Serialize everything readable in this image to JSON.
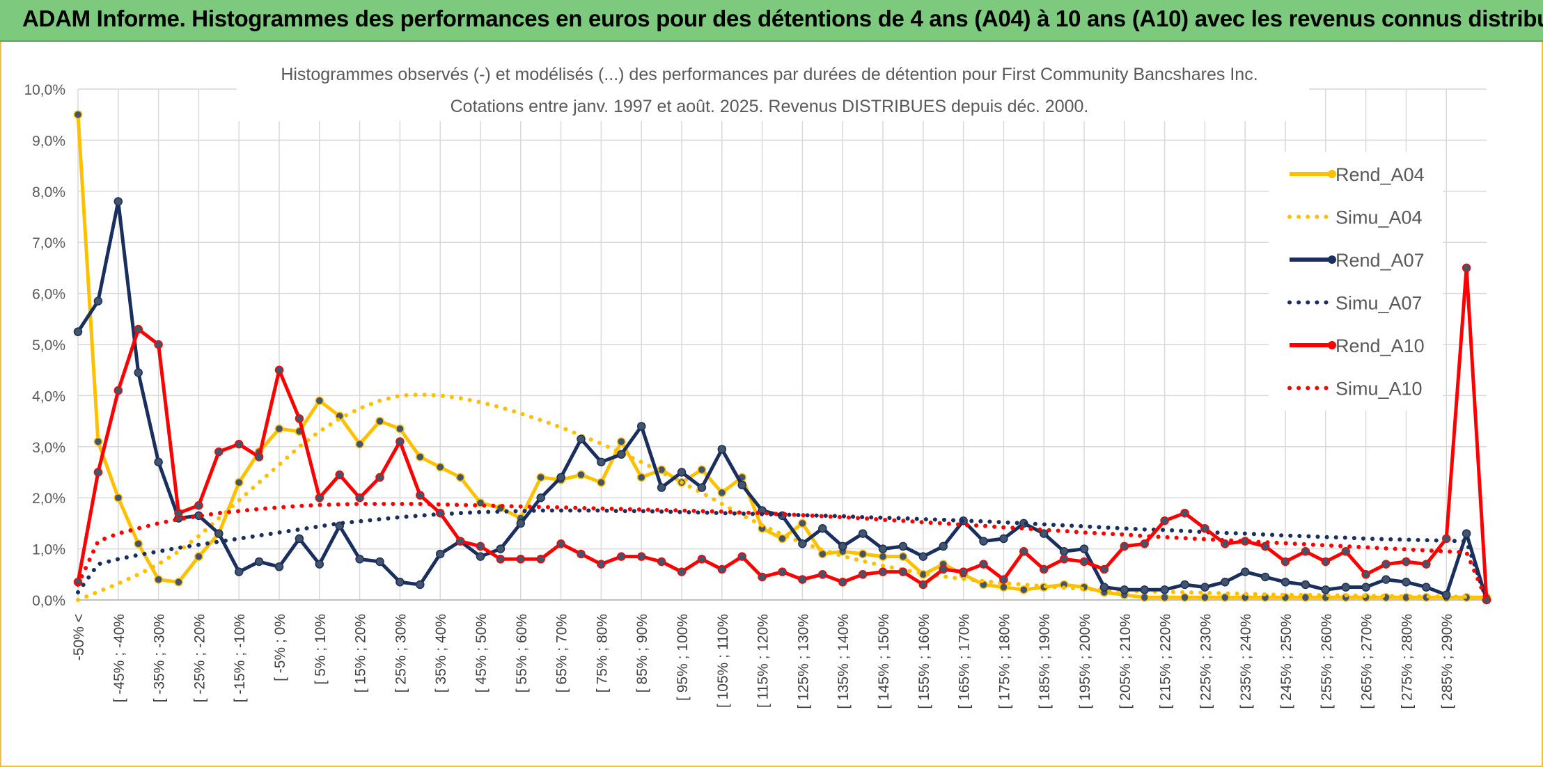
{
  "banner": {
    "title": "ADAM Informe. Histogrammes des performances en euros pour des détentions de 4 ans (A04) à 10 ans (A10) avec les revenus connus distribués"
  },
  "chart_data": {
    "type": "line",
    "title": "Histogrammes observés (-) et modélisés (...) des performances par durées de détention pour First Community Bancshares Inc.",
    "subtitle": "Cotations entre janv. 1997 et août. 2025. Revenus DISTRIBUES depuis déc. 2000.",
    "xlabel": "",
    "ylabel": "",
    "ylim": [
      0,
      10
    ],
    "y_ticks": [
      "0,0%",
      "1,0%",
      "2,0%",
      "3,0%",
      "4,0%",
      "5,0%",
      "6,0%",
      "7,0%",
      "8,0%",
      "9,0%",
      "10,0%"
    ],
    "x_tick_labels": [
      "-50% <",
      "[ -45% ; -40%",
      "[ -35% ; -30%",
      "[ -25% ; -20%",
      "[ -15% ; -10%",
      "[ -5% ; 0%",
      "[ 5% ; 10%",
      "[ 15% ; 20%",
      "[ 25% ; 30%",
      "[ 35% ; 40%",
      "[ 45% ; 50%",
      "[ 55% ; 60%",
      "[ 65% ; 70%",
      "[ 75% ; 80%",
      "[ 85% ; 90%",
      "[ 95% ; 100%",
      "[ 105% ; 110%",
      "[ 115% ; 120%",
      "[ 125% ; 130%",
      "[ 135% ; 140%",
      "[ 145% ; 150%",
      "[ 155% ; 160%",
      "[ 165% ; 170%",
      "[ 175% ; 180%",
      "[ 185% ; 190%",
      "[ 195% ; 200%",
      "[ 205% ; 210%",
      "[ 215% ; 220%",
      "[ 225% ; 230%",
      "[ 235% ; 240%",
      "[ 245% ; 250%",
      "[ 255% ; 260%",
      "[ 265% ; 270%",
      "[ 275% ; 280%",
      "[ 285% ; 290%"
    ],
    "grid": true,
    "legend_position": "right",
    "series": [
      {
        "name": "Rend_A04",
        "style": "solid",
        "color": "#ffc000",
        "values": [
          9.5,
          3.1,
          2.0,
          1.1,
          0.4,
          0.35,
          0.85,
          1.3,
          2.3,
          2.9,
          3.35,
          3.3,
          3.9,
          3.6,
          3.05,
          3.5,
          3.35,
          2.8,
          2.6,
          2.4,
          1.9,
          1.8,
          1.6,
          2.4,
          2.35,
          2.45,
          2.3,
          3.1,
          2.4,
          2.55,
          2.3,
          2.55,
          2.1,
          2.4,
          1.4,
          1.2,
          1.5,
          0.9,
          0.95,
          0.9,
          0.85,
          0.85,
          0.5,
          0.7,
          0.5,
          0.3,
          0.25,
          0.2,
          0.25,
          0.3,
          0.25,
          0.15,
          0.1,
          0.05,
          0.05,
          0.05,
          0.05,
          0.05,
          0.05,
          0.05,
          0.05,
          0.05,
          0.05,
          0.05,
          0.05,
          0.05,
          0.05,
          0.05,
          0.05,
          0.05,
          0.05
        ]
      },
      {
        "name": "Simu_A04",
        "style": "dotted",
        "color": "#ffc000",
        "values": [
          0.0,
          0.16,
          0.32,
          0.5,
          0.7,
          0.95,
          1.25,
          1.6,
          1.95,
          2.3,
          2.65,
          3.0,
          3.3,
          3.55,
          3.75,
          3.9,
          4.0,
          4.02,
          4.0,
          3.95,
          3.87,
          3.77,
          3.65,
          3.52,
          3.38,
          3.22,
          3.06,
          2.88,
          2.7,
          2.5,
          2.3,
          2.1,
          1.88,
          1.66,
          1.46,
          1.28,
          1.12,
          0.98,
          0.86,
          0.76,
          0.67,
          0.59,
          0.52,
          0.46,
          0.41,
          0.37,
          0.33,
          0.3,
          0.27,
          0.24,
          0.22,
          0.2,
          0.18,
          0.17,
          0.16,
          0.15,
          0.14,
          0.13,
          0.12,
          0.11,
          0.1,
          0.1,
          0.09,
          0.09,
          0.08,
          0.08,
          0.07,
          0.07,
          0.07,
          0.06,
          0.0
        ]
      },
      {
        "name": "Rend_A07",
        "style": "solid",
        "color": "#1a2f5e",
        "values": [
          5.25,
          5.85,
          7.8,
          4.45,
          2.7,
          1.6,
          1.65,
          1.3,
          0.55,
          0.75,
          0.65,
          1.2,
          0.7,
          1.45,
          0.8,
          0.75,
          0.35,
          0.3,
          0.9,
          1.15,
          0.85,
          1.0,
          1.5,
          2.0,
          2.4,
          3.15,
          2.7,
          2.85,
          3.4,
          2.2,
          2.5,
          2.2,
          2.95,
          2.25,
          1.75,
          1.65,
          1.1,
          1.4,
          1.05,
          1.3,
          1.0,
          1.05,
          0.85,
          1.05,
          1.55,
          1.15,
          1.2,
          1.5,
          1.3,
          0.95,
          1.0,
          0.25,
          0.2,
          0.2,
          0.2,
          0.3,
          0.25,
          0.35,
          0.55,
          0.45,
          0.35,
          0.3,
          0.2,
          0.25,
          0.25,
          0.4,
          0.35,
          0.25,
          0.1,
          1.3,
          0.0
        ]
      },
      {
        "name": "Simu_A07",
        "style": "dotted",
        "color": "#1a2f5e",
        "values": [
          0.15,
          0.7,
          0.8,
          0.88,
          0.95,
          1.02,
          1.08,
          1.14,
          1.2,
          1.26,
          1.32,
          1.38,
          1.44,
          1.5,
          1.54,
          1.58,
          1.62,
          1.65,
          1.68,
          1.7,
          1.72,
          1.73,
          1.74,
          1.75,
          1.75,
          1.75,
          1.75,
          1.74,
          1.74,
          1.73,
          1.72,
          1.71,
          1.7,
          1.69,
          1.68,
          1.67,
          1.66,
          1.65,
          1.64,
          1.62,
          1.61,
          1.6,
          1.58,
          1.57,
          1.55,
          1.54,
          1.52,
          1.5,
          1.48,
          1.46,
          1.44,
          1.42,
          1.4,
          1.38,
          1.37,
          1.35,
          1.33,
          1.31,
          1.3,
          1.28,
          1.26,
          1.25,
          1.23,
          1.22,
          1.2,
          1.19,
          1.18,
          1.17,
          1.16,
          1.15,
          0.0
        ]
      },
      {
        "name": "Rend_A10",
        "style": "solid",
        "color": "#ff0000",
        "values": [
          0.35,
          2.5,
          4.1,
          5.3,
          5.0,
          1.7,
          1.85,
          2.9,
          3.05,
          2.8,
          4.5,
          3.55,
          2.0,
          2.45,
          2.0,
          2.4,
          3.1,
          2.05,
          1.7,
          1.15,
          1.05,
          0.8,
          0.8,
          0.8,
          1.1,
          0.9,
          0.7,
          0.85,
          0.85,
          0.75,
          0.55,
          0.8,
          0.6,
          0.85,
          0.45,
          0.55,
          0.4,
          0.5,
          0.35,
          0.5,
          0.55,
          0.55,
          0.3,
          0.6,
          0.55,
          0.7,
          0.4,
          0.95,
          0.6,
          0.8,
          0.75,
          0.6,
          1.05,
          1.1,
          1.55,
          1.7,
          1.4,
          1.1,
          1.15,
          1.05,
          0.75,
          0.95,
          0.75,
          0.95,
          0.5,
          0.7,
          0.75,
          0.7,
          1.2,
          6.5,
          0.0
        ]
      },
      {
        "name": "Simu_A10",
        "style": "dotted",
        "color": "#ff0000",
        "values": [
          0.3,
          1.15,
          1.3,
          1.4,
          1.5,
          1.58,
          1.64,
          1.7,
          1.74,
          1.78,
          1.81,
          1.84,
          1.86,
          1.87,
          1.88,
          1.88,
          1.88,
          1.88,
          1.87,
          1.86,
          1.85,
          1.84,
          1.83,
          1.82,
          1.81,
          1.8,
          1.79,
          1.78,
          1.77,
          1.76,
          1.75,
          1.74,
          1.73,
          1.71,
          1.7,
          1.68,
          1.66,
          1.64,
          1.62,
          1.6,
          1.57,
          1.55,
          1.52,
          1.5,
          1.47,
          1.45,
          1.42,
          1.4,
          1.37,
          1.35,
          1.32,
          1.3,
          1.28,
          1.25,
          1.23,
          1.21,
          1.19,
          1.17,
          1.15,
          1.13,
          1.11,
          1.09,
          1.07,
          1.05,
          1.03,
          1.01,
          0.99,
          0.97,
          0.95,
          0.93,
          0.0
        ]
      }
    ]
  }
}
